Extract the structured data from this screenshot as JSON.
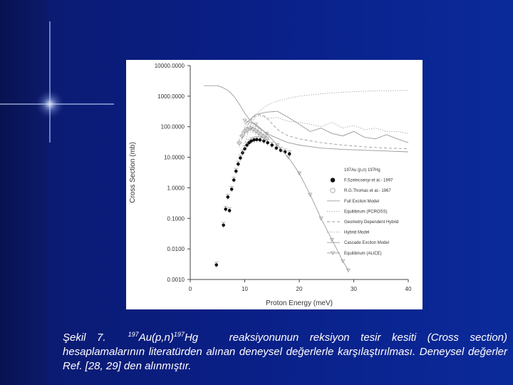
{
  "caption": {
    "prefix": "Şekil 7.",
    "sup1": "197",
    "reactant": "Au(p,n)",
    "sup2": "197",
    "product": "Hg",
    "text": "reaksiyonunun reksiyon tesir kesiti (Cross section) hesaplamalarının literatürden alınan deneysel değerlerle karşılaştırılması. Deneysel değerler Ref. [28, 29] den alınmıştır."
  },
  "chart_data": {
    "type": "scatter",
    "xlabel": "Proton Energy (meV)",
    "ylabel": "Cross Section (mb)",
    "xlim": [
      0,
      40
    ],
    "ylim": [
      0.001,
      10000
    ],
    "yscale": "log",
    "x_ticks": [
      "0",
      "10",
      "20",
      "30",
      "40"
    ],
    "y_ticks": [
      "10000.0000",
      "1000.0000",
      "100.0000",
      "10.0000",
      "1.0000",
      "0.1000",
      "0.0100",
      "0.0010"
    ],
    "legend_title": "197Au (p,n) 197Hg",
    "legend_position": "right",
    "colors": {
      "points": "#111111",
      "lines": "#9a9a9a",
      "panel": "#ffffff"
    },
    "series": [
      {
        "name": "F.Szelecsenyi et al.- 1997",
        "kind": "filled-circle",
        "points": [
          [
            4.8,
            0.003
          ],
          [
            6.1,
            0.06
          ],
          [
            6.5,
            0.2
          ],
          [
            6.9,
            0.5
          ],
          [
            7.2,
            0.18
          ],
          [
            7.6,
            0.9
          ],
          [
            8.0,
            1.8
          ],
          [
            8.4,
            3.5
          ],
          [
            8.8,
            6
          ],
          [
            9.2,
            9.5
          ],
          [
            9.6,
            14
          ],
          [
            10.0,
            19
          ],
          [
            10.4,
            25
          ],
          [
            10.8,
            30
          ],
          [
            11.2,
            34
          ],
          [
            11.7,
            37
          ],
          [
            12.2,
            38
          ],
          [
            12.8,
            37
          ],
          [
            13.5,
            34
          ],
          [
            14.2,
            30
          ],
          [
            15.0,
            25
          ],
          [
            15.8,
            20
          ],
          [
            16.6,
            17
          ],
          [
            17.4,
            15
          ],
          [
            18.2,
            13
          ]
        ]
      },
      {
        "name": "R.G.Thomas et al.- 1967",
        "kind": "open-circle",
        "points": [
          [
            9.0,
            30
          ],
          [
            9.5,
            50
          ],
          [
            10.0,
            70
          ],
          [
            10.5,
            80
          ],
          [
            11.0,
            90
          ],
          [
            11.5,
            85
          ],
          [
            12.0,
            75
          ],
          [
            12.5,
            65
          ],
          [
            13.0,
            55
          ],
          [
            13.5,
            48
          ],
          [
            14.0,
            42
          ]
        ]
      },
      {
        "name": "Full Exciton Model",
        "kind": "line-solid",
        "points": [
          [
            2.5,
            2200
          ],
          [
            5,
            2200
          ],
          [
            6,
            1900
          ],
          [
            7,
            1500
          ],
          [
            8,
            1000
          ],
          [
            9,
            550
          ],
          [
            10,
            280
          ],
          [
            11,
            160
          ],
          [
            12,
            110
          ],
          [
            13,
            80
          ],
          [
            14,
            62
          ],
          [
            15,
            50
          ],
          [
            16,
            42
          ],
          [
            17,
            35
          ],
          [
            18,
            30
          ],
          [
            20,
            25
          ],
          [
            24,
            20
          ],
          [
            28,
            18
          ],
          [
            32,
            17
          ],
          [
            36,
            16
          ],
          [
            40,
            15
          ]
        ]
      },
      {
        "name": "Equilibrium (PCROSS)",
        "kind": "line-dotted",
        "points": [
          [
            9.5,
            12
          ],
          [
            10.5,
            60
          ],
          [
            11.5,
            160
          ],
          [
            12.5,
            300
          ],
          [
            14,
            500
          ],
          [
            16,
            700
          ],
          [
            18,
            850
          ],
          [
            20,
            1000
          ],
          [
            24,
            1200
          ],
          [
            28,
            1350
          ],
          [
            32,
            1450
          ],
          [
            36,
            1500
          ],
          [
            40,
            1550
          ]
        ]
      },
      {
        "name": "Geometry Dependent Hybrid",
        "kind": "line-dashed",
        "points": [
          [
            9.5,
            40
          ],
          [
            10.5,
            110
          ],
          [
            11.5,
            200
          ],
          [
            12.5,
            250
          ],
          [
            13.5,
            230
          ],
          [
            14.5,
            160
          ],
          [
            15.5,
            100
          ],
          [
            16.5,
            70
          ],
          [
            18,
            50
          ],
          [
            20,
            40
          ],
          [
            24,
            30
          ],
          [
            28,
            25
          ],
          [
            32,
            22
          ],
          [
            36,
            20
          ],
          [
            40,
            19
          ]
        ]
      },
      {
        "name": "Hybrid Model",
        "kind": "line-dotted",
        "points": [
          [
            9.5,
            60
          ],
          [
            10.5,
            140
          ],
          [
            11.5,
            210
          ],
          [
            12.5,
            230
          ],
          [
            13.5,
            210
          ],
          [
            14.5,
            190
          ],
          [
            16,
            200
          ],
          [
            18,
            150
          ],
          [
            20,
            140
          ],
          [
            22,
            120
          ],
          [
            24,
            100
          ],
          [
            26,
            140
          ],
          [
            28,
            90
          ],
          [
            30,
            110
          ],
          [
            32,
            80
          ],
          [
            34,
            90
          ],
          [
            36,
            70
          ],
          [
            38,
            70
          ],
          [
            40,
            60
          ]
        ]
      },
      {
        "name": "Cascade Exciton Model",
        "kind": "line-solid",
        "points": [
          [
            10,
            120
          ],
          [
            12,
            250
          ],
          [
            14,
            300
          ],
          [
            16,
            320
          ],
          [
            18,
            200
          ],
          [
            20,
            120
          ],
          [
            22,
            70
          ],
          [
            24,
            90
          ],
          [
            26,
            60
          ],
          [
            28,
            50
          ],
          [
            30,
            70
          ],
          [
            32,
            45
          ],
          [
            34,
            40
          ],
          [
            36,
            55
          ],
          [
            38,
            40
          ],
          [
            40,
            30
          ]
        ]
      },
      {
        "name": "Equilibrium (ALICE)",
        "kind": "line-triangle",
        "points": [
          [
            10,
            160
          ],
          [
            12,
            120
          ],
          [
            14,
            60
          ],
          [
            16,
            25
          ],
          [
            18,
            10
          ],
          [
            20,
            3
          ],
          [
            22,
            0.6
          ],
          [
            24,
            0.1
          ],
          [
            26,
            0.02
          ],
          [
            28,
            0.004
          ],
          [
            29,
            0.002
          ]
        ]
      }
    ]
  }
}
